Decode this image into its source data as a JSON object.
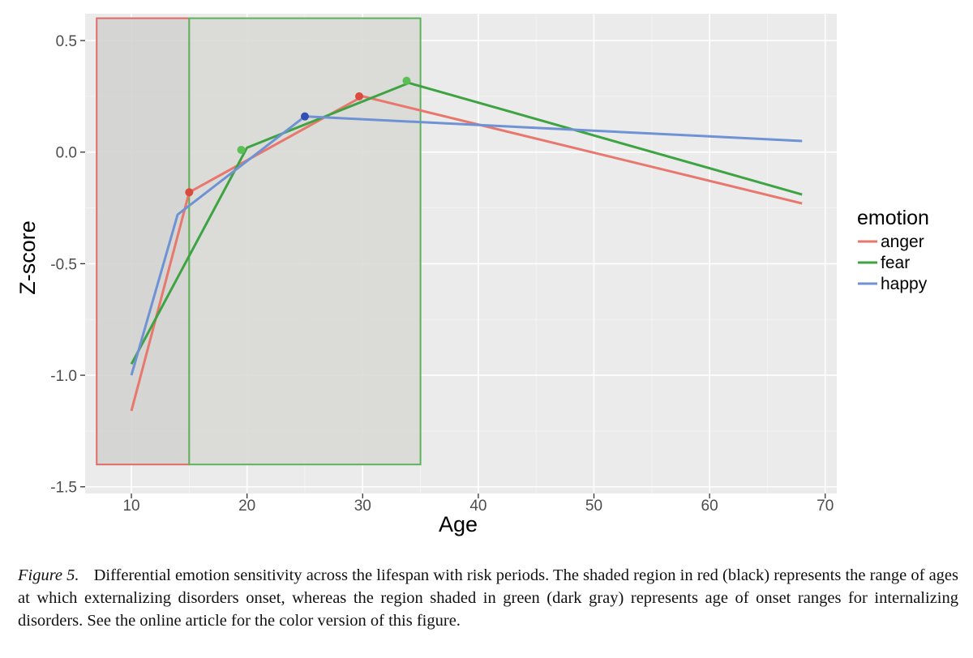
{
  "chart_data": {
    "type": "line",
    "xlabel": "Age",
    "ylabel": "Z-score",
    "xlim": [
      6,
      71
    ],
    "ylim": [
      -1.53,
      0.62
    ],
    "x_ticks": [
      10,
      20,
      30,
      40,
      50,
      60,
      70
    ],
    "y_ticks": [
      0.5,
      0.0,
      -0.5,
      -1.0,
      -1.5
    ],
    "y_tick_labels": [
      "0.5",
      "0.0",
      "-0.5",
      "-1.0",
      "-1.5"
    ],
    "grid": true,
    "legend": {
      "title": "emotion",
      "placement": "right"
    },
    "series": [
      {
        "name": "anger",
        "color": "#e8776d",
        "points": [
          [
            10,
            -1.16
          ],
          [
            15,
            -0.18
          ],
          [
            30,
            0.25
          ],
          [
            68,
            -0.23
          ]
        ],
        "peak": [
          29.7,
          0.25
        ],
        "marker_color": "#d94b3f"
      },
      {
        "name": "fear",
        "color": "#3da343",
        "points": [
          [
            10,
            -0.95
          ],
          [
            20,
            0.02
          ],
          [
            34,
            0.31
          ],
          [
            68,
            -0.19
          ]
        ],
        "peak": [
          19.5,
          0.01
        ],
        "peak2": [
          33.8,
          0.32
        ],
        "marker_color": "#5cbf55"
      },
      {
        "name": "happy",
        "color": "#6f92d4",
        "points": [
          [
            10,
            -1.0
          ],
          [
            14,
            -0.28
          ],
          [
            25,
            0.16
          ],
          [
            68,
            0.05
          ]
        ],
        "peak": [
          25,
          0.16
        ],
        "marker_color": "#2f4fb3"
      }
    ],
    "extra_markers": [
      {
        "x": 15,
        "y": -0.18,
        "color": "#d94b3f"
      }
    ],
    "regions": [
      {
        "name": "externalizing",
        "x": [
          7,
          15
        ],
        "y": [
          -1.4,
          0.6
        ],
        "stroke": "#e06b66",
        "fill": "#d3d3d0"
      },
      {
        "name": "internalizing",
        "x": [
          15,
          35
        ],
        "y": [
          -1.4,
          0.6
        ],
        "stroke": "#5cb35c",
        "fill": "#d9d9d6"
      }
    ]
  },
  "caption": {
    "label": "Figure 5.",
    "text": "Differential emotion sensitivity across the lifespan with risk periods. The shaded region in red (black) represents the range of ages at which externalizing disorders onset, whereas the region shaded in green (dark gray) represents age of onset ranges for internalizing disorders. See the online article for the color version of this figure."
  }
}
